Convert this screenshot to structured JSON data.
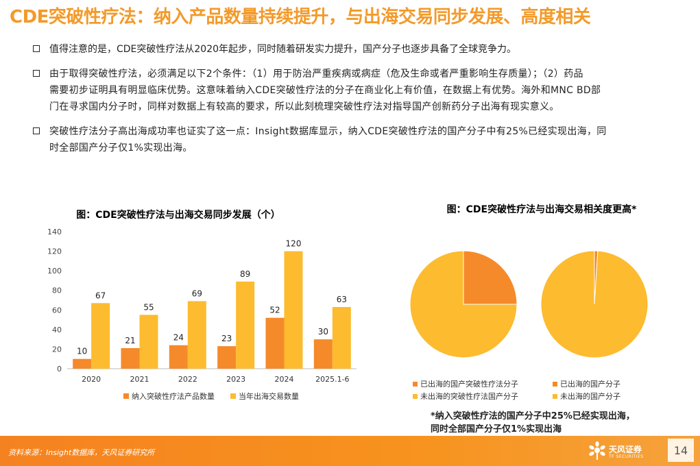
{
  "title": "CDE突破性疗法：纳入产品数量持续提升，与出海交易同步发展、高度相关",
  "bullets": [
    {
      "text": "值得注意的是，CDE突破性疗法从2020年起步，同时随着研发实力提升，国产分子也逐步具备了全球竞争力。"
    },
    {
      "lines": [
        "由于取得突破性疗法，必须满足以下2个条件：（1）用于防治严重疾病或病症（危及生命或者严重影响生存质量）；（2）药品",
        "需要初步证明具有明显临床优势。这意味着纳入CDE突破性疗法的分子在商业化上有价值，在数据上有优势。海外和MNC BD部",
        "门在寻求国内分子时，同样对数据上有较高的要求，所以此刻梳理突破性疗法对指导国产创新药分子出海有现实意义。"
      ]
    },
    {
      "lines": [
        "突破性疗法分子高出海成功率也证实了这一点：Insight数据库显示，纳入CDE突破性疗法的国产分子中有25%已经实现出海，同",
        "时全部国产分子仅1%实现出海。"
      ]
    }
  ],
  "colors": {
    "orange": "#F58A2B",
    "yellow": "#FDBB2F",
    "accent": "#F39A2A"
  },
  "chart_data": [
    {
      "type": "bar",
      "title": "图：CDE突破性疗法与出海交易同步发展（个）",
      "categories": [
        "2020",
        "2021",
        "2022",
        "2023",
        "2024",
        "2025.1-6"
      ],
      "series": [
        {
          "name": "纳入突破性疗法产品数量",
          "values": [
            10,
            21,
            24,
            23,
            52,
            30
          ],
          "color": "#F58A2B"
        },
        {
          "name": "当年出海交易数量",
          "values": [
            67,
            55,
            69,
            89,
            120,
            63
          ],
          "color": "#FDBB2F"
        }
      ],
      "ylim": [
        0,
        140
      ],
      "yticks": [
        "0",
        "20",
        "40",
        "60",
        "80",
        "100",
        "120",
        "140"
      ],
      "grid": false,
      "legend_position": "bottom"
    },
    {
      "type": "pie",
      "title": "图：CDE突破性疗法与出海交易相关度更高*",
      "pies": [
        {
          "slices": [
            {
              "name": "已出海的国产突破性疗法分子",
              "value": 25,
              "color": "#F58A2B"
            },
            {
              "name": "未出海的突破性疗法国产分子",
              "value": 75,
              "color": "#FDBB2F"
            }
          ]
        },
        {
          "slices": [
            {
              "name": "已出海的国产分子",
              "value": 1,
              "color": "#F58A2B"
            },
            {
              "name": "未出海的国产分子",
              "value": 99,
              "color": "#FDBB2F"
            }
          ]
        }
      ],
      "legend": [
        {
          "label": "已出海的国产突破性疗法分子",
          "color": "#F58A2B"
        },
        {
          "label": "已出海的国产分子",
          "color": "#F58A2B"
        },
        {
          "label": "未出海的突破性疗法国产分子",
          "color": "#FDBB2F"
        },
        {
          "label": "未出海的国产分子",
          "color": "#FDBB2F"
        }
      ],
      "legend_position": "bottom"
    }
  ],
  "footnote": [
    "*纳入突破性疗法的国产分子中25%已经实现出海，",
    "同时全部国产分子仅1%实现出海"
  ],
  "source": "资料来源：Insight数据库，天风证券研究所",
  "brand": {
    "name": "天风证券",
    "sub": "TF SECURITIES"
  },
  "page_number": "14"
}
